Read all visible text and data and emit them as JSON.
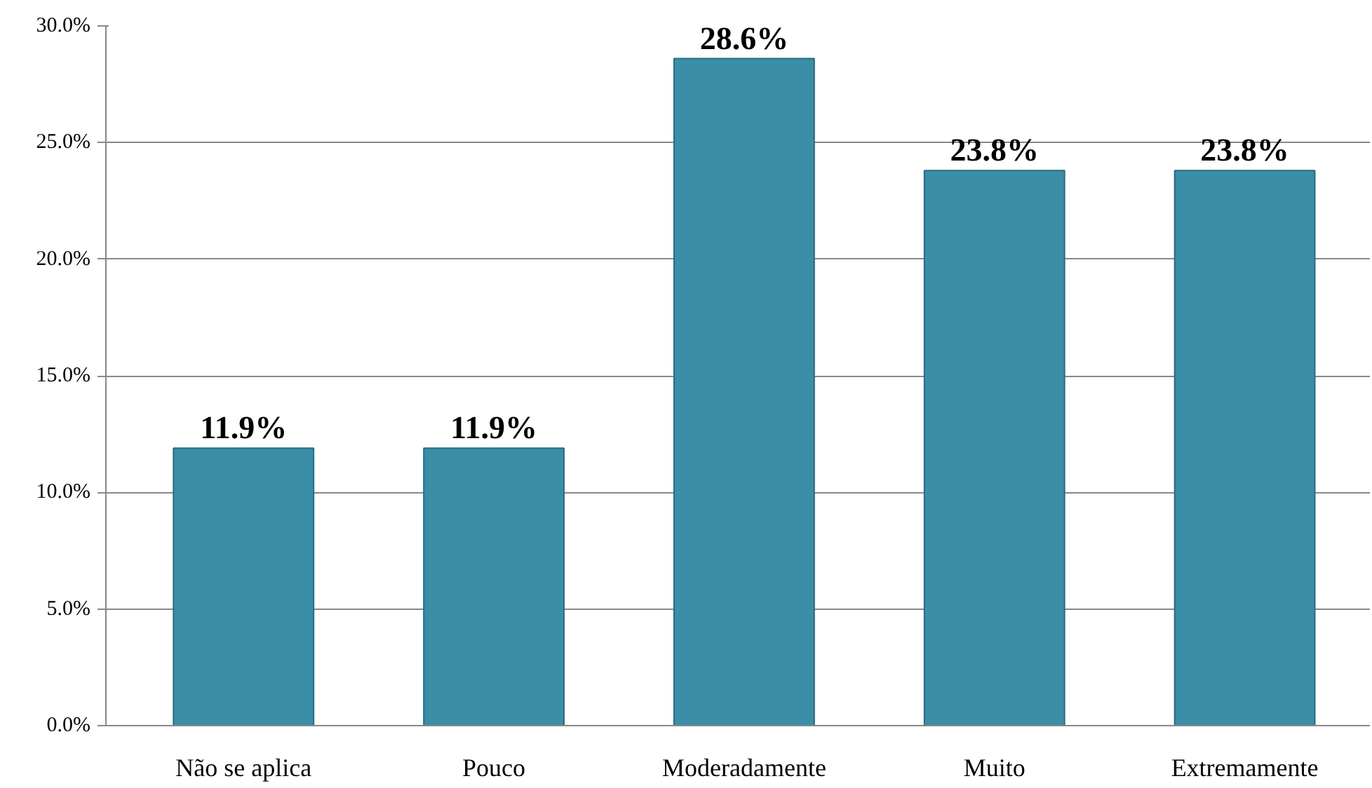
{
  "chart_data": {
    "type": "bar",
    "categories": [
      "Não se aplica",
      "Pouco",
      "Moderadamente",
      "Muito",
      "Extremamente"
    ],
    "values": [
      11.9,
      11.9,
      28.6,
      23.8,
      23.8
    ],
    "value_labels": [
      "11.9%",
      "11.9%",
      "28.6%",
      "23.8%",
      "23.8%"
    ],
    "color": "#3a8ea7",
    "ylim": [
      0,
      30
    ],
    "yticks": [
      {
        "value": 0,
        "label": "0.0%"
      },
      {
        "value": 5,
        "label": "5.0%"
      },
      {
        "value": 10,
        "label": "10.0%"
      },
      {
        "value": 15,
        "label": "15.0%"
      },
      {
        "value": 20,
        "label": "20.0%"
      },
      {
        "value": 25,
        "label": "25.0%"
      },
      {
        "value": 30,
        "label": "30.0%"
      }
    ],
    "grid": "y"
  }
}
